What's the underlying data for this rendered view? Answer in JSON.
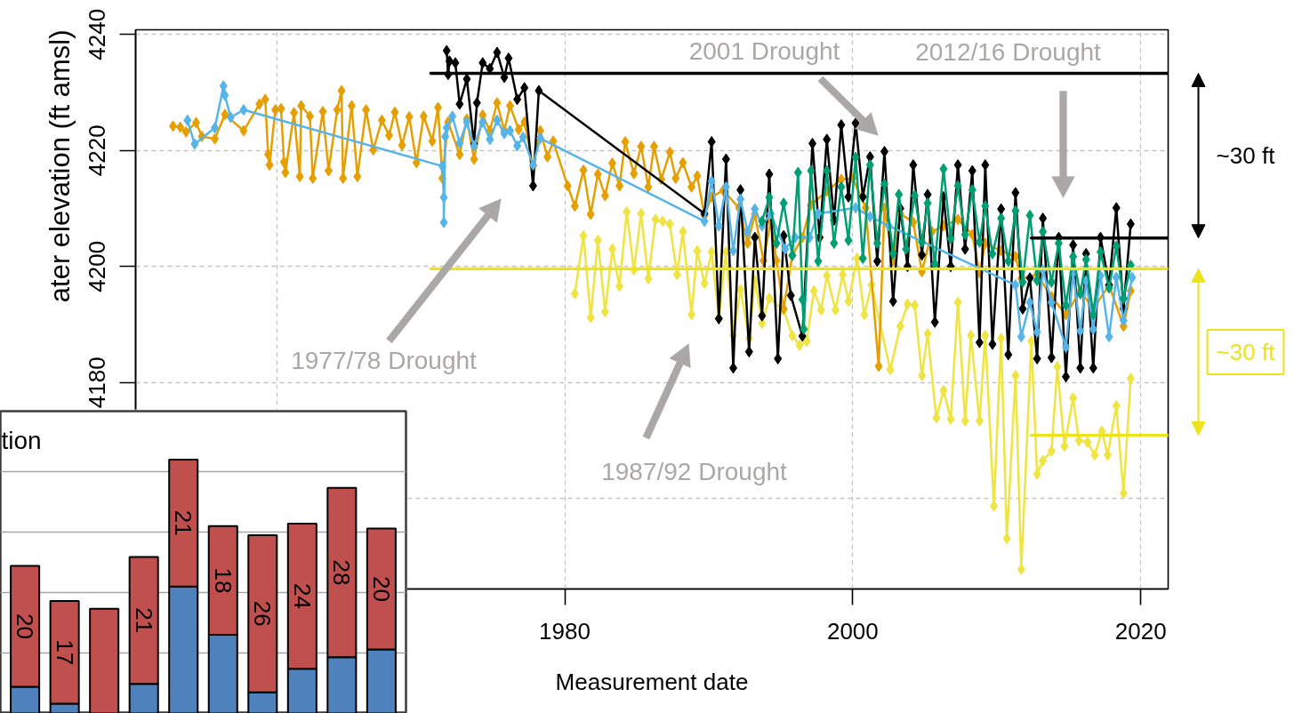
{
  "chart_data": [
    {
      "type": "line",
      "xlabel": "Measurement date",
      "ylabel": "ater elevation (ft amsl)",
      "xlim": [
        1950.2,
        2021.9
      ],
      "ylim": [
        4144.4,
        4240.8
      ],
      "xticks": [
        {
          "value": 1960,
          "label": null
        },
        1980,
        2000,
        2020
      ],
      "yticks": [
        {
          "value": 4160,
          "label": null
        },
        4180,
        4200,
        4220,
        4240
      ],
      "grid": true,
      "marker": "diamond",
      "line_style": "solid",
      "series": [
        {
          "color": "#f0e442",
          "x": [
            1980.7,
            1981.3,
            1981.8,
            1982.3,
            1982.8,
            1983.3,
            1983.8,
            1984.3,
            1984.8,
            1985.3,
            1985.8,
            1986.3,
            1986.8,
            1987.3,
            1987.8,
            1988.2,
            1988.8,
            1989.2,
            1989.7,
            1990.2,
            1990.7,
            1991.2,
            1991.7,
            1992.2,
            1992.8,
            1993.2,
            1993.7,
            1994.2,
            1995.2,
            1995.8,
            1996.3,
            1996.8,
            1997.3,
            1997.8,
            1998.2,
            1998.8,
            1999.3,
            1999.7,
            2000.3,
            2000.8,
            2001.3,
            2002.6,
            2003.3,
            2003.8,
            2004.3,
            2004.8,
            2005.2,
            2005.8,
            2006.3,
            2006.8,
            2007.3,
            2007.8,
            2008.2,
            2008.8,
            2009.2,
            2009.8,
            2010.3,
            2010.7,
            2011.3,
            2011.7,
            2012.4,
            2012.8,
            2013.2,
            2013.8,
            2014.2,
            2014.7,
            2015.3,
            2015.7,
            2016.3,
            2016.8,
            2017.3,
            2017.7,
            2018.3,
            2018.8,
            2019.3
          ],
          "values": [
            4195.3,
            4205.3,
            4191.2,
            4204.5,
            4192.2,
            4203.0,
            4196.6,
            4209.4,
            4199.4,
            4209.1,
            4197.9,
            4208.1,
            4207.8,
            4207.3,
            4198.6,
            4206.0,
            4191.7,
            4202.7,
            4197.1,
            4202.5,
            4191.0,
            4202.5,
            4188.1,
            4196.0,
            4187.6,
            4197.6,
            4190.2,
            4194.5,
            4192.5,
            4188.1,
            4186.4,
            4187.1,
            4195.8,
            4192.5,
            4198.4,
            4192.5,
            4198.6,
            4194.0,
            4201.4,
            4191.7,
            4196.8,
            4182.2,
            4189.7,
            4193.5,
            4193.3,
            4181.2,
            4188.4,
            4173.9,
            4178.6,
            4173.7,
            4193.8,
            4173.4,
            4188.1,
            4173.4,
            4188.1,
            4158.7,
            4187.6,
            4153.1,
            4181.2,
            4147.8,
            4187.1,
            4164.2,
            4166.5,
            4168.2,
            4182.7,
            4169.0,
            4177.3,
            4170.0,
            4169.7,
            4167.5,
            4171.6,
            4167.5,
            4176.0,
            4160.9,
            4180.7
          ]
        },
        {
          "color": "#e69f00",
          "x": [
            1952.8,
            1953.3,
            1953.7,
            1954.4,
            1954.8,
            1955.7,
            1956.4,
            1957.7,
            1958.8,
            1959.2,
            1959.4,
            1959.5,
            1959.9,
            1960.3,
            1960.5,
            1960.6,
            1961.2,
            1961.6,
            1961.7,
            1962.3,
            1962.5,
            1963.2,
            1963.6,
            1964.2,
            1964.5,
            1964.6,
            1965.2,
            1965.6,
            1966.2,
            1966.7,
            1967.3,
            1967.8,
            1968.2,
            1968.7,
            1969.2,
            1969.7,
            1970.2,
            1970.8,
            1971.2,
            1971.5,
            1971.9,
            1972.7,
            1973.2,
            1973.7,
            1974.3,
            1974.8,
            1975.3,
            1975.8,
            1976.2,
            1976.8,
            1977.2,
            1977.8,
            1978.3,
            1978.8,
            1979.2,
            1980.2,
            1980.7,
            1981.3,
            1981.8,
            1982.3,
            1982.8,
            1983.3,
            1983.8,
            1984.2,
            1984.8,
            1985.3,
            1985.8,
            1986.2,
            1986.7,
            1987.3,
            1987.7,
            1988.2,
            1988.8,
            1989.2,
            1989.7,
            1990.2,
            1991.0,
            1992.1,
            1992.7,
            1993.2,
            1993.8,
            1994.3,
            1994.7,
            1995.2,
            1995.8,
            1996.5,
            1997.1,
            1998.2,
            1999.2,
            2000.0,
            2000.9,
            2001.8,
            2002.2,
            2002.8,
            2003.3,
            2004.2,
            2004.8,
            2005.5,
            2006.3,
            2007.3,
            2008.3,
            2008.8,
            2009.2,
            2010.3,
            2011.3,
            2011.7,
            2012.8,
            2013.8,
            2014.8,
            2015.8,
            2016.7,
            2017.8,
            2018.8,
            2019.3
          ],
          "values": [
            4224.2,
            4224.0,
            4223.2,
            4224.8,
            4222.4,
            4222.0,
            4226.2,
            4223.4,
            4228.0,
            4228.8,
            4219.3,
            4217.5,
            4227.0,
            4227.2,
            4218.0,
            4216.2,
            4226.5,
            4215.5,
            4227.7,
            4225.9,
            4215.2,
            4226.7,
            4216.5,
            4227.0,
            4230.3,
            4215.2,
            4227.7,
            4215.5,
            4227.0,
            4220.1,
            4225.2,
            4222.6,
            4226.6,
            4220.9,
            4225.8,
            4217.9,
            4225.9,
            4221.6,
            4227.4,
            4215.2,
            4224.9,
            4219.3,
            4225.4,
            4218.5,
            4226.1,
            4223.4,
            4228.2,
            4223.4,
            4227.7,
            4223.6,
            4224.9,
            4217.3,
            4223.4,
            4218.9,
            4221.6,
            4213.9,
            4210.4,
            4216.6,
            4209.0,
            4215.9,
            4212.2,
            4217.8,
            4213.9,
            4221.5,
            4216.0,
            4220.7,
            4213.7,
            4220.7,
            4215.0,
            4219.7,
            4215.2,
            4217.9,
            4213.7,
            4215.6,
            4208.8,
            4212.0,
            4213.1,
            4210.1,
            4204.0,
            4209.0,
            4201.0,
            4207.8,
            4201.0,
            4192.7,
            4201.9,
            4205.0,
            4210.6,
            4213.0,
            4215.0,
            4215.2,
            4210.1,
            4182.8,
            4210.1,
            4200.9,
            4209.1,
            4207.6,
            4199.1,
            4206.0,
            4207.0,
            4208.1,
            4205.5,
            4198.9,
            4204.0,
            4202.7,
            4201.7,
            4197.9,
            4198.6,
            4194.8,
            4191.7,
            4195.8,
            4192.7,
            4196.8,
            4189.7,
            4195.8
          ]
        },
        {
          "color": "#000000",
          "x": [
            1971.8,
            1971.9,
            1972.0,
            1972.4,
            1972.7,
            1973.2,
            1973.7,
            1973.9,
            1974.3,
            1974.8,
            1975.3,
            1975.8,
            1976.1,
            1976.7,
            1977.2,
            1977.8,
            1978.2,
            1989.7,
            1990.2,
            1990.7,
            1991.2,
            1991.7,
            1992.2,
            1992.8,
            1993.2,
            1993.7,
            1994.2,
            1994.8,
            1995.2,
            1995.7,
            1996.5,
            1997.2,
            1997.7,
            1998.2,
            1998.7,
            1999.2,
            1999.7,
            2000.2,
            2000.7,
            2001.2,
            2001.7,
            2002.2,
            2002.8,
            2003.3,
            2003.8,
            2004.2,
            2004.8,
            2005.2,
            2005.7,
            2006.3,
            2006.8,
            2007.3,
            2007.8,
            2008.3,
            2008.8,
            2009.2,
            2009.7,
            2010.3,
            2010.8,
            2011.3,
            2011.8,
            2012.3,
            2012.8,
            2013.2,
            2013.8,
            2014.3,
            2014.8,
            2015.3,
            2015.8,
            2016.2,
            2016.7,
            2017.2,
            2017.8,
            2018.3,
            2018.8,
            2019.3
          ],
          "values": [
            4237.2,
            4233.1,
            4235.4,
            4235.1,
            4228.0,
            4232.3,
            4221.1,
            4228.2,
            4235.1,
            4234.1,
            4236.9,
            4232.6,
            4235.9,
            4228.8,
            4230.8,
            4213.9,
            4230.3,
            4209.1,
            4221.5,
            4191.0,
            4218.5,
            4182.5,
            4213.2,
            4185.3,
            4205.0,
            4191.5,
            4215.9,
            4184.1,
            4205.3,
            4195.0,
            4188.0,
            4221.2,
            4205.0,
            4221.9,
            4208.0,
            4224.4,
            4212.0,
            4224.7,
            4212.0,
            4218.9,
            4200.9,
            4219.8,
            4194.0,
            4210.0,
            4200.0,
            4217.5,
            4202.0,
            4212.4,
            4190.4,
            4212.0,
            4200.0,
            4217.5,
            4203.0,
            4216.5,
            4186.9,
            4217.5,
            4186.6,
            4209.9,
            4184.8,
            4212.7,
            4192.7,
            4198.0,
            4184.1,
            4208.3,
            4184.3,
            4205.0,
            4181.0,
            4203.7,
            4182.5,
            4202.2,
            4182.5,
            4205.0,
            4196.8,
            4210.1,
            4192.7,
            4207.3
          ]
        },
        {
          "color": "#56b4e9",
          "x": [
            1953.8,
            1954.3,
            1955.7,
            1956.3,
            1956.4,
            1956.8,
            1957.7,
            1971.5,
            1971.6,
            1971.6,
            1971.7,
            1971.8,
            1972.2,
            1972.7,
            1973.2,
            1973.7,
            1974.3,
            1974.8,
            1975.3,
            1975.8,
            1976.2,
            1976.7,
            1977.1,
            1977.8,
            1978.3,
            1989.7,
            1990.2,
            1990.7,
            1991.2,
            1991.7,
            1992.2,
            1992.7,
            1993.2,
            1993.7,
            1994.3,
            1995.3,
            1996.0,
            1997.0,
            1997.6,
            2000.2,
            2001.2,
            2002.5,
            2011.3,
            2011.7,
            2012.3,
            2012.8,
            2013.2,
            2013.8,
            2014.8,
            2015.3,
            2015.8,
            2016.2,
            2016.7,
            2017.2,
            2017.8,
            2018.3,
            2018.8,
            2019.4
          ],
          "values": [
            4225.2,
            4221.1,
            4223.9,
            4231.1,
            4229.5,
            4225.7,
            4227.0,
            4217.3,
            4211.9,
            4207.6,
            4222.4,
            4223.9,
            4225.9,
            4221.3,
            4224.9,
            4220.8,
            4224.9,
            4221.9,
            4225.2,
            4222.9,
            4223.4,
            4220.8,
            4222.3,
            4217.5,
            4222.1,
            4207.8,
            4214.7,
            4207.0,
            4213.7,
            4202.7,
            4211.6,
            4206.0,
            4209.9,
            4207.0,
            4209.1,
            4203.0,
            4205.0,
            4205.0,
            4209.1,
            4210.1,
            4208.6,
            4207.0,
            4196.8,
            4187.9,
            4193.8,
            4188.7,
            4199.4,
            4193.8,
            4186.1,
            4198.9,
            4188.9,
            4197.5,
            4189.2,
            4198.4,
            4187.9,
            4198.1,
            4190.7,
            4198.1
          ]
        },
        {
          "color": "#009e73",
          "x": [
            1993.7,
            1994.2,
            1994.7,
            1995.2,
            1995.8,
            1996.2,
            1996.5,
            1996.6,
            1997.1,
            1997.6,
            1998.2,
            1998.7,
            1999.2,
            1999.7,
            2000.2,
            2000.7,
            2001.2,
            2001.7,
            2002.2,
            2002.8,
            2003.2,
            2003.7,
            2004.3,
            2004.8,
            2005.2,
            2005.7,
            2006.3,
            2006.8,
            2007.3,
            2007.8,
            2008.3,
            2008.8,
            2009.2,
            2009.7,
            2010.3,
            2010.8,
            2011.3,
            2011.8,
            2012.3,
            2012.8,
            2013.2,
            2013.8,
            2014.3,
            2014.8,
            2015.3,
            2015.8,
            2016.2,
            2016.7,
            2017.2,
            2017.8,
            2018.3,
            2018.8,
            2019.3
          ],
          "values": [
            4207.8,
            4211.9,
            4204.0,
            4210.9,
            4201.9,
            4216.2,
            4194.3,
            4189.2,
            4216.5,
            4200.9,
            4216.5,
            4204.0,
            4213.7,
            4204.5,
            4218.8,
            4201.4,
            4217.5,
            4204.0,
            4214.2,
            4202.2,
            4212.4,
            4203.0,
            4212.2,
            4204.2,
            4210.9,
            4200.4,
            4216.8,
            4204.8,
            4213.9,
            4205.5,
            4213.2,
            4204.2,
            4210.4,
            4202.2,
            4208.3,
            4200.9,
            4209.6,
            4197.3,
            4208.8,
            4197.6,
            4206.0,
            4197.3,
            4204.0,
            4193.3,
            4201.7,
            4195.3,
            4201.2,
            4191.7,
            4202.5,
            4196.3,
            4203.5,
            4194.5,
            4200.2
          ]
        },
        {
          "color": "#000000",
          "marker": "none",
          "x": [
            1970.7,
            2021.9
          ],
          "values": [
            4233.3,
            4233.3
          ]
        },
        {
          "color": "#000000",
          "marker": "none",
          "x": [
            2012.4,
            2021.9
          ],
          "values": [
            4204.9,
            4204.9
          ]
        },
        {
          "color": "#ede31b",
          "marker": "none",
          "x": [
            1970.7,
            2021.9
          ],
          "values": [
            4199.6,
            4199.6
          ]
        },
        {
          "color": "#ede31b",
          "marker": "none",
          "x": [
            2012.4,
            2021.9
          ],
          "values": [
            4170.9,
            4170.9
          ]
        }
      ],
      "annotations": [
        "1977/78 Drought",
        "1987/92 Drought",
        "2001 Drought",
        "2012/16 Drought",
        "~30 ft",
        "~30 ft"
      ]
    },
    {
      "type": "bar",
      "title": "tion",
      "stacked": true,
      "categories": [
        null,
        null,
        null,
        null,
        null,
        null,
        null,
        null,
        null,
        null
      ],
      "ylim": [
        0,
        50
      ],
      "grid": "y",
      "yticks": [
        {
          "value": 10,
          "label": null
        },
        {
          "value": 20,
          "label": null
        },
        {
          "value": 30,
          "label": null
        },
        {
          "value": 40,
          "label": null
        }
      ],
      "series": [
        {
          "color": "#4f81bd",
          "values": [
            4.4,
            1.6,
            null,
            4.9,
            21.0,
            13.0,
            3.5,
            7.4,
            9.3,
            10.6
          ]
        },
        {
          "color": "#c0504d",
          "values": [
            20,
            17,
            17.3,
            21,
            21,
            18,
            26,
            24,
            28,
            20
          ],
          "value_labels": [
            "20",
            "17",
            null,
            "21",
            "21",
            "18",
            "26",
            "24",
            "28",
            "20"
          ]
        }
      ]
    }
  ]
}
